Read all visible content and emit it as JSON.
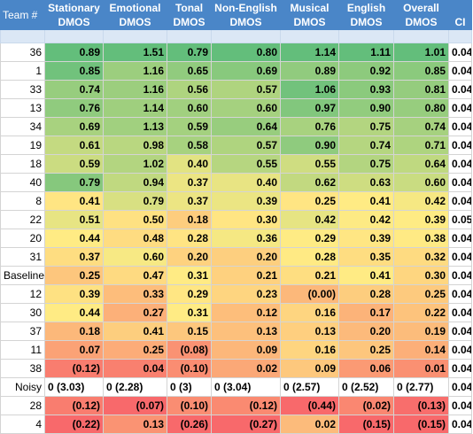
{
  "headers": [
    [
      "Team #",
      ""
    ],
    [
      "Stationary",
      "DMOS"
    ],
    [
      "Emotional",
      "DMOS"
    ],
    [
      "Tonal",
      "DMOS"
    ],
    [
      "Non-English",
      "DMOS"
    ],
    [
      "Musical",
      "DMOS"
    ],
    [
      "English",
      "DMOS"
    ],
    [
      "Overall",
      "DMOS"
    ],
    [
      "",
      "CI"
    ]
  ],
  "rows": [
    {
      "team": "36",
      "values": [
        "0.89",
        "1.51",
        "0.79",
        "0.80",
        "1.14",
        "1.11",
        "1.01"
      ],
      "ci": "0.04"
    },
    {
      "team": "1",
      "values": [
        "0.85",
        "1.16",
        "0.65",
        "0.69",
        "0.89",
        "0.92",
        "0.85"
      ],
      "ci": "0.04"
    },
    {
      "team": "33",
      "values": [
        "0.74",
        "1.16",
        "0.56",
        "0.57",
        "1.06",
        "0.93",
        "0.81"
      ],
      "ci": "0.04"
    },
    {
      "team": "13",
      "values": [
        "0.76",
        "1.14",
        "0.60",
        "0.60",
        "0.97",
        "0.90",
        "0.80"
      ],
      "ci": "0.04"
    },
    {
      "team": "34",
      "values": [
        "0.69",
        "1.13",
        "0.59",
        "0.64",
        "0.76",
        "0.75",
        "0.74"
      ],
      "ci": "0.04"
    },
    {
      "team": "19",
      "values": [
        "0.61",
        "0.98",
        "0.58",
        "0.57",
        "0.90",
        "0.74",
        "0.71"
      ],
      "ci": "0.04"
    },
    {
      "team": "18",
      "values": [
        "0.59",
        "1.02",
        "0.40",
        "0.55",
        "0.55",
        "0.75",
        "0.64"
      ],
      "ci": "0.04"
    },
    {
      "team": "40",
      "values": [
        "0.79",
        "0.94",
        "0.37",
        "0.40",
        "0.62",
        "0.63",
        "0.60"
      ],
      "ci": "0.04"
    },
    {
      "team": "8",
      "values": [
        "0.41",
        "0.79",
        "0.37",
        "0.39",
        "0.25",
        "0.41",
        "0.42"
      ],
      "ci": "0.04"
    },
    {
      "team": "22",
      "values": [
        "0.51",
        "0.50",
        "0.18",
        "0.30",
        "0.42",
        "0.42",
        "0.39"
      ],
      "ci": "0.05"
    },
    {
      "team": "20",
      "values": [
        "0.44",
        "0.48",
        "0.28",
        "0.36",
        "0.29",
        "0.39",
        "0.38"
      ],
      "ci": "0.04"
    },
    {
      "team": "31",
      "values": [
        "0.37",
        "0.60",
        "0.20",
        "0.20",
        "0.28",
        "0.35",
        "0.32"
      ],
      "ci": "0.04"
    },
    {
      "team": "Baseline",
      "values": [
        "0.25",
        "0.47",
        "0.31",
        "0.21",
        "0.21",
        "0.41",
        "0.30"
      ],
      "ci": "0.04"
    },
    {
      "team": "12",
      "values": [
        "0.39",
        "0.33",
        "0.29",
        "0.23",
        "(0.00)",
        "0.28",
        "0.25"
      ],
      "ci": "0.04"
    },
    {
      "team": "30",
      "values": [
        "0.44",
        "0.27",
        "0.31",
        "0.12",
        "0.16",
        "0.17",
        "0.22"
      ],
      "ci": "0.04"
    },
    {
      "team": "37",
      "values": [
        "0.18",
        "0.41",
        "0.15",
        "0.13",
        "0.13",
        "0.20",
        "0.19"
      ],
      "ci": "0.04"
    },
    {
      "team": "11",
      "values": [
        "0.07",
        "0.25",
        "(0.08)",
        "0.09",
        "0.16",
        "0.25",
        "0.14"
      ],
      "ci": "0.04"
    },
    {
      "team": "38",
      "values": [
        "(0.12)",
        "0.04",
        "(0.10)",
        "0.02",
        "0.09",
        "0.06",
        "0.01"
      ],
      "ci": "0.04"
    },
    {
      "team": "Noisy",
      "special": true,
      "values": [
        "0 (3.03)",
        "0 (2.28)",
        "0 (3)",
        "0 (3.04)",
        "0 (2.57)",
        "0 (2.52)",
        "0 (2.77)"
      ],
      "ci": "0.04"
    },
    {
      "team": "28",
      "values": [
        "(0.12)",
        "(0.07)",
        "(0.10)",
        "(0.12)",
        "(0.44)",
        "(0.02)",
        "(0.13)"
      ],
      "ci": "0.04"
    },
    {
      "team": "4",
      "values": [
        "(0.22)",
        "0.13",
        "(0.26)",
        "(0.27)",
        "0.02",
        "(0.15)",
        "(0.15)"
      ],
      "ci": "0.04"
    }
  ],
  "colors": {
    "header_bg": "#4a86c8",
    "scale_low": "#f8696b",
    "scale_mid": "#ffeb84",
    "scale_high": "#63be7b"
  }
}
